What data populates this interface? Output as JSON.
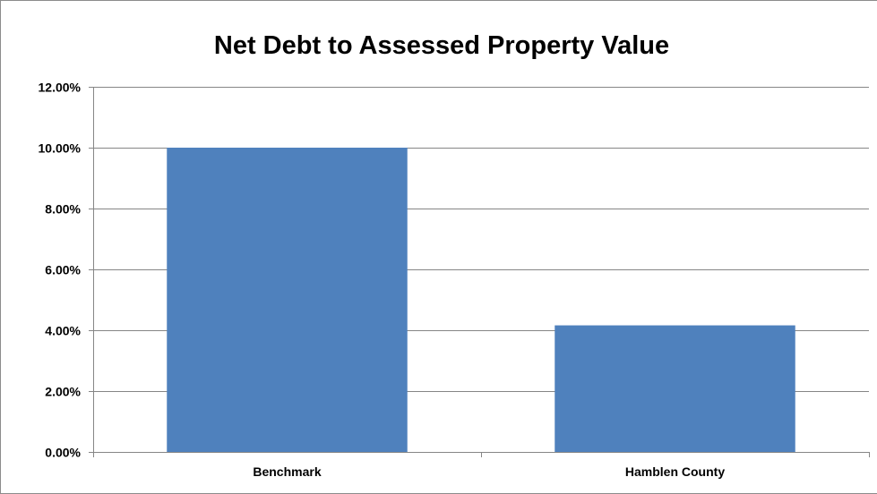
{
  "chart_data": {
    "type": "bar",
    "title": "Net Debt to Assessed Property Value",
    "xlabel": "",
    "ylabel": "",
    "categories": [
      "Benchmark",
      "Hamblen County"
    ],
    "values": [
      0.1,
      0.0416
    ],
    "ylim": [
      0,
      0.12
    ],
    "yticks": [
      0,
      0.02,
      0.04,
      0.06,
      0.08,
      0.1,
      0.12
    ],
    "ytick_labels": [
      "0.00%",
      "2.00%",
      "4.00%",
      "6.00%",
      "8.00%",
      "10.00%",
      "12.00%"
    ],
    "grid": true,
    "legend": "none",
    "bar_color": "#4f81bd",
    "gridline_color": "#868686"
  }
}
